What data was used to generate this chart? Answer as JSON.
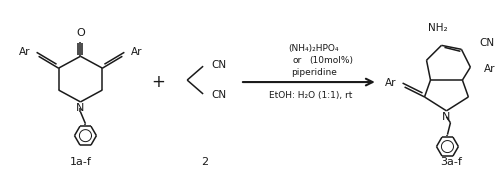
{
  "line_color": "#1a1a1a",
  "text_color": "#1a1a1a",
  "fig_width": 5.0,
  "fig_height": 1.8,
  "dpi": 100,
  "label_1af": "1a-f",
  "label_2": "2",
  "label_3af": "3a-f",
  "reagent_line1": "(NH₄)₂HPO₄",
  "reagent_line2": "or",
  "reagent_line2b": "(10mol%)",
  "reagent_line3": "piperidine",
  "reagent_line4": "EtOH: H₂O (1:1), rt"
}
